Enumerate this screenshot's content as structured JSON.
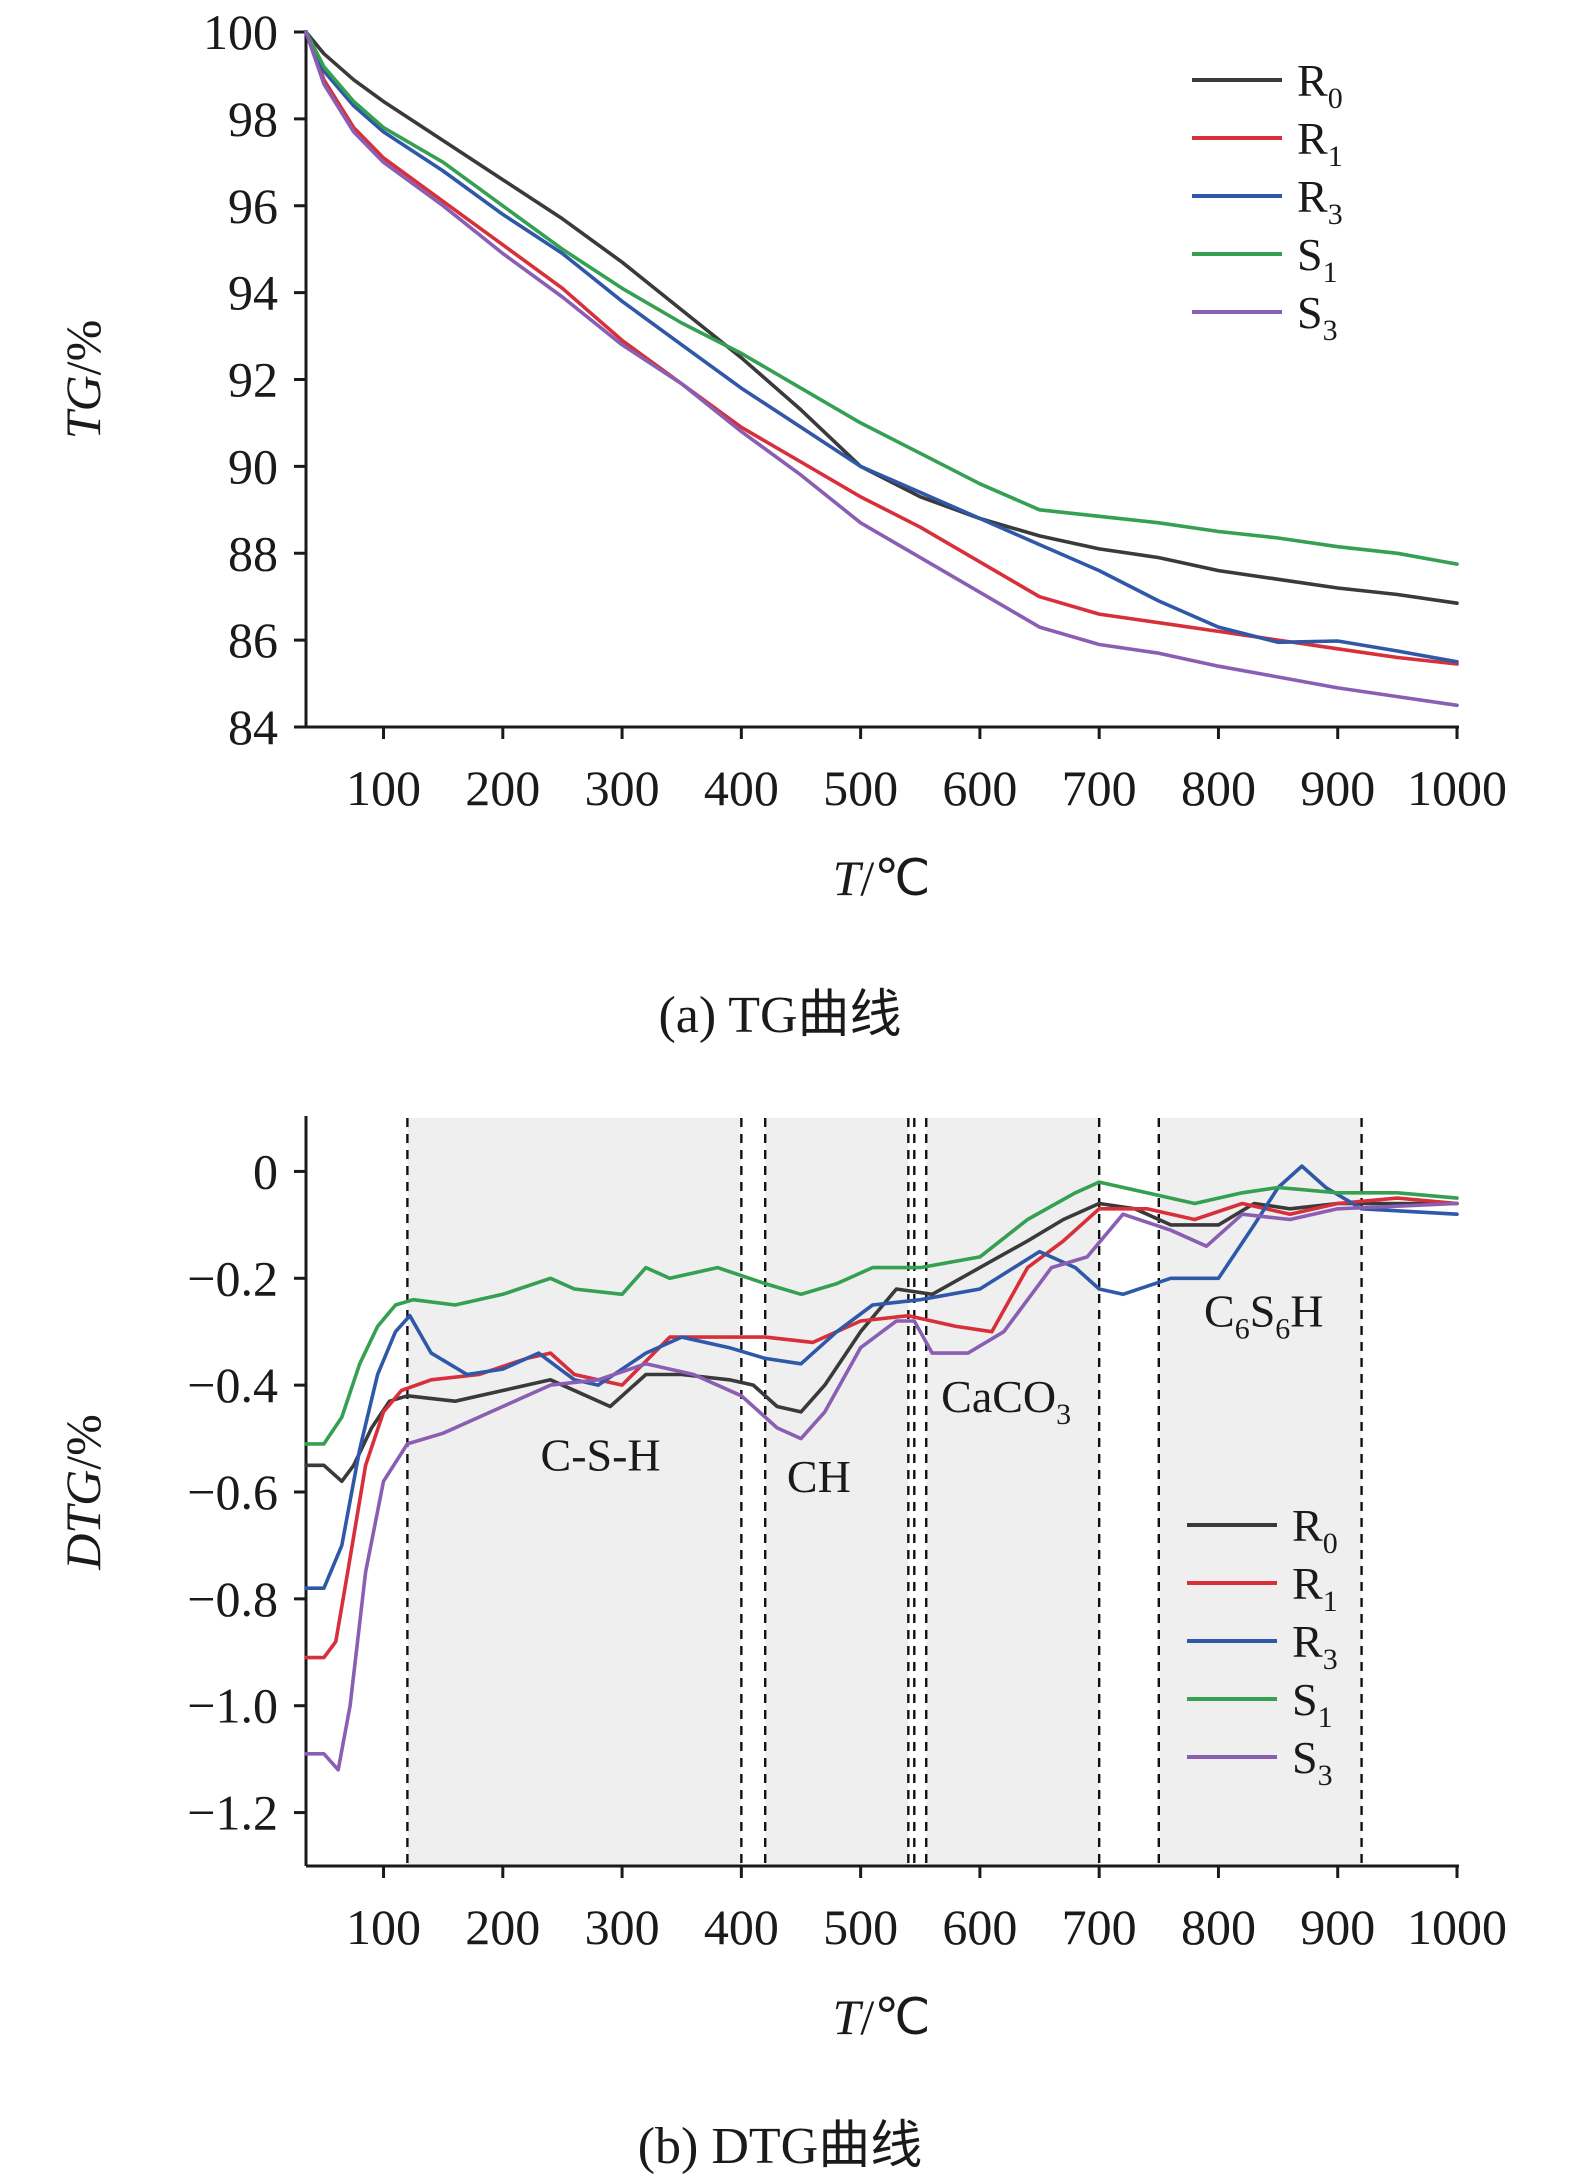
{
  "colors": {
    "R0": "#3a3a3a",
    "R1": "#d7303a",
    "R3": "#2f58a8",
    "S1": "#35a052",
    "S3": "#8a5fb3",
    "shade": "#efefef",
    "axis": "#1a1a1a"
  },
  "chart_data": [
    {
      "type": "line",
      "caption": "(a) TG曲线",
      "xlabel": {
        "italic": "T",
        "rest": "/℃"
      },
      "ylabel": {
        "italic": "TG",
        "rest": "/%"
      },
      "xlim": [
        35,
        1000
      ],
      "ylim": [
        84,
        100
      ],
      "xticks": [
        "100",
        "200",
        "300",
        "400",
        "500",
        "600",
        "700",
        "800",
        "900",
        "1000"
      ],
      "yticks": [
        "84",
        "86",
        "88",
        "90",
        "92",
        "94",
        "96",
        "98",
        "100"
      ],
      "legend_position": "top-right",
      "x": [
        35,
        50,
        75,
        100,
        150,
        200,
        250,
        300,
        350,
        400,
        450,
        500,
        550,
        600,
        650,
        700,
        750,
        800,
        850,
        900,
        950,
        1000
      ],
      "series": [
        {
          "key": "R0",
          "name": "R",
          "sub": "0",
          "values": [
            100,
            99.5,
            98.9,
            98.4,
            97.5,
            96.6,
            95.7,
            94.7,
            93.6,
            92.5,
            91.3,
            90.0,
            89.3,
            88.8,
            88.4,
            88.1,
            87.9,
            87.6,
            87.4,
            87.2,
            87.05,
            86.85
          ]
        },
        {
          "key": "R1",
          "name": "R",
          "sub": "1",
          "values": [
            100,
            98.9,
            97.8,
            97.1,
            96.1,
            95.1,
            94.1,
            92.9,
            91.9,
            90.9,
            90.1,
            89.3,
            88.6,
            87.8,
            87.0,
            86.6,
            86.4,
            86.2,
            86.0,
            85.8,
            85.6,
            85.45
          ]
        },
        {
          "key": "R3",
          "name": "R",
          "sub": "3",
          "values": [
            100,
            99.1,
            98.3,
            97.7,
            96.8,
            95.8,
            94.9,
            93.8,
            92.8,
            91.8,
            90.9,
            90.0,
            89.4,
            88.8,
            88.2,
            87.6,
            86.9,
            86.3,
            85.95,
            85.98,
            85.75,
            85.5
          ]
        },
        {
          "key": "S1",
          "name": "S",
          "sub": "1",
          "values": [
            100,
            99.2,
            98.4,
            97.8,
            97.0,
            96.0,
            95.0,
            94.1,
            93.3,
            92.6,
            91.8,
            91.0,
            90.3,
            89.6,
            89.0,
            88.85,
            88.7,
            88.5,
            88.35,
            88.15,
            88.0,
            87.75
          ]
        },
        {
          "key": "S3",
          "name": "S",
          "sub": "3",
          "values": [
            100,
            98.8,
            97.7,
            97.0,
            96.0,
            94.9,
            93.9,
            92.8,
            91.9,
            90.8,
            89.8,
            88.7,
            87.9,
            87.1,
            86.3,
            85.9,
            85.7,
            85.4,
            85.15,
            84.9,
            84.7,
            84.5
          ]
        }
      ]
    },
    {
      "type": "line",
      "caption": "(b) DTG曲线",
      "xlabel": {
        "italic": "T",
        "rest": "/℃"
      },
      "ylabel": {
        "italic": "DTG",
        "rest": "/%"
      },
      "xlim": [
        35,
        1000
      ],
      "ylim": [
        -1.3,
        0.1
      ],
      "xticks": [
        "100",
        "200",
        "300",
        "400",
        "500",
        "600",
        "700",
        "800",
        "900",
        "1000"
      ],
      "yticks": [
        "0",
        "−0.2",
        "−0.4",
        "−0.6",
        "−0.8",
        "−1.0",
        "−1.2"
      ],
      "legend_position": "bottom-right",
      "vlines": [
        120,
        400,
        420,
        540,
        545,
        555,
        700,
        750,
        920
      ],
      "shaded_regions": [
        {
          "x0": 120,
          "x1": 400,
          "label": "C-S-H",
          "label_x": 282,
          "label_y": -0.56
        },
        {
          "x0": 420,
          "x1": 540,
          "label": "CH",
          "label_x": 465,
          "label_y": -0.6
        },
        {
          "x0": 555,
          "x1": 700,
          "label": "CaCO",
          "sub": "3",
          "label_x": 622,
          "label_y": -0.45
        },
        {
          "x0": 750,
          "x1": 920,
          "label": "C",
          "label_parts": [
            "C",
            "6",
            "S",
            "6",
            "H"
          ],
          "label_x": 838,
          "label_y": -0.29
        }
      ],
      "series": [
        {
          "key": "R0",
          "name": "R",
          "sub": "0",
          "x": [
            35,
            50,
            65,
            75,
            90,
            105,
            120,
            160,
            200,
            240,
            270,
            290,
            320,
            350,
            390,
            410,
            430,
            450,
            470,
            500,
            530,
            560,
            600,
            640,
            670,
            700,
            730,
            760,
            800,
            830,
            860,
            900,
            1000
          ],
          "values": [
            -0.55,
            -0.55,
            -0.58,
            -0.55,
            -0.48,
            -0.43,
            -0.42,
            -0.43,
            -0.41,
            -0.39,
            -0.42,
            -0.44,
            -0.38,
            -0.38,
            -0.39,
            -0.4,
            -0.44,
            -0.45,
            -0.4,
            -0.3,
            -0.22,
            -0.23,
            -0.18,
            -0.13,
            -0.09,
            -0.06,
            -0.07,
            -0.1,
            -0.1,
            -0.06,
            -0.07,
            -0.06,
            -0.06
          ]
        },
        {
          "key": "R1",
          "name": "R",
          "sub": "1",
          "x": [
            35,
            50,
            60,
            70,
            85,
            100,
            115,
            140,
            180,
            220,
            240,
            260,
            300,
            340,
            380,
            420,
            460,
            500,
            540,
            580,
            610,
            640,
            670,
            700,
            740,
            780,
            820,
            860,
            900,
            950,
            1000
          ],
          "values": [
            -0.91,
            -0.91,
            -0.88,
            -0.75,
            -0.55,
            -0.45,
            -0.41,
            -0.39,
            -0.38,
            -0.35,
            -0.34,
            -0.38,
            -0.4,
            -0.31,
            -0.31,
            -0.31,
            -0.32,
            -0.28,
            -0.27,
            -0.29,
            -0.3,
            -0.18,
            -0.13,
            -0.07,
            -0.07,
            -0.09,
            -0.06,
            -0.08,
            -0.06,
            -0.05,
            -0.06
          ]
        },
        {
          "key": "R3",
          "name": "R",
          "sub": "3",
          "x": [
            35,
            50,
            65,
            80,
            95,
            110,
            122,
            140,
            170,
            200,
            230,
            260,
            280,
            320,
            350,
            390,
            420,
            450,
            480,
            510,
            550,
            600,
            650,
            680,
            700,
            720,
            760,
            800,
            830,
            850,
            870,
            890,
            920,
            1000
          ],
          "values": [
            -0.78,
            -0.78,
            -0.7,
            -0.52,
            -0.38,
            -0.3,
            -0.27,
            -0.34,
            -0.38,
            -0.37,
            -0.34,
            -0.39,
            -0.4,
            -0.34,
            -0.31,
            -0.33,
            -0.35,
            -0.36,
            -0.3,
            -0.25,
            -0.24,
            -0.22,
            -0.15,
            -0.18,
            -0.22,
            -0.23,
            -0.2,
            -0.2,
            -0.1,
            -0.03,
            0.01,
            -0.03,
            -0.07,
            -0.08
          ]
        },
        {
          "key": "S1",
          "name": "S",
          "sub": "1",
          "x": [
            35,
            50,
            65,
            80,
            95,
            110,
            125,
            160,
            200,
            240,
            260,
            300,
            320,
            340,
            380,
            420,
            450,
            480,
            510,
            550,
            600,
            640,
            680,
            700,
            740,
            780,
            820,
            850,
            900,
            950,
            1000
          ],
          "values": [
            -0.51,
            -0.51,
            -0.46,
            -0.36,
            -0.29,
            -0.25,
            -0.24,
            -0.25,
            -0.23,
            -0.2,
            -0.22,
            -0.23,
            -0.18,
            -0.2,
            -0.18,
            -0.21,
            -0.23,
            -0.21,
            -0.18,
            -0.18,
            -0.16,
            -0.09,
            -0.04,
            -0.02,
            -0.04,
            -0.06,
            -0.04,
            -0.03,
            -0.04,
            -0.04,
            -0.05
          ]
        },
        {
          "key": "S3",
          "name": "S",
          "sub": "3",
          "x": [
            35,
            50,
            62,
            72,
            85,
            100,
            120,
            150,
            200,
            240,
            280,
            320,
            360,
            400,
            430,
            450,
            470,
            500,
            530,
            545,
            560,
            590,
            620,
            660,
            690,
            720,
            760,
            790,
            820,
            860,
            900,
            1000
          ],
          "values": [
            -1.09,
            -1.09,
            -1.12,
            -1.0,
            -0.75,
            -0.58,
            -0.51,
            -0.49,
            -0.44,
            -0.4,
            -0.39,
            -0.36,
            -0.38,
            -0.42,
            -0.48,
            -0.5,
            -0.45,
            -0.33,
            -0.28,
            -0.28,
            -0.34,
            -0.34,
            -0.3,
            -0.18,
            -0.16,
            -0.08,
            -0.11,
            -0.14,
            -0.08,
            -0.09,
            -0.07,
            -0.06
          ]
        }
      ]
    }
  ]
}
